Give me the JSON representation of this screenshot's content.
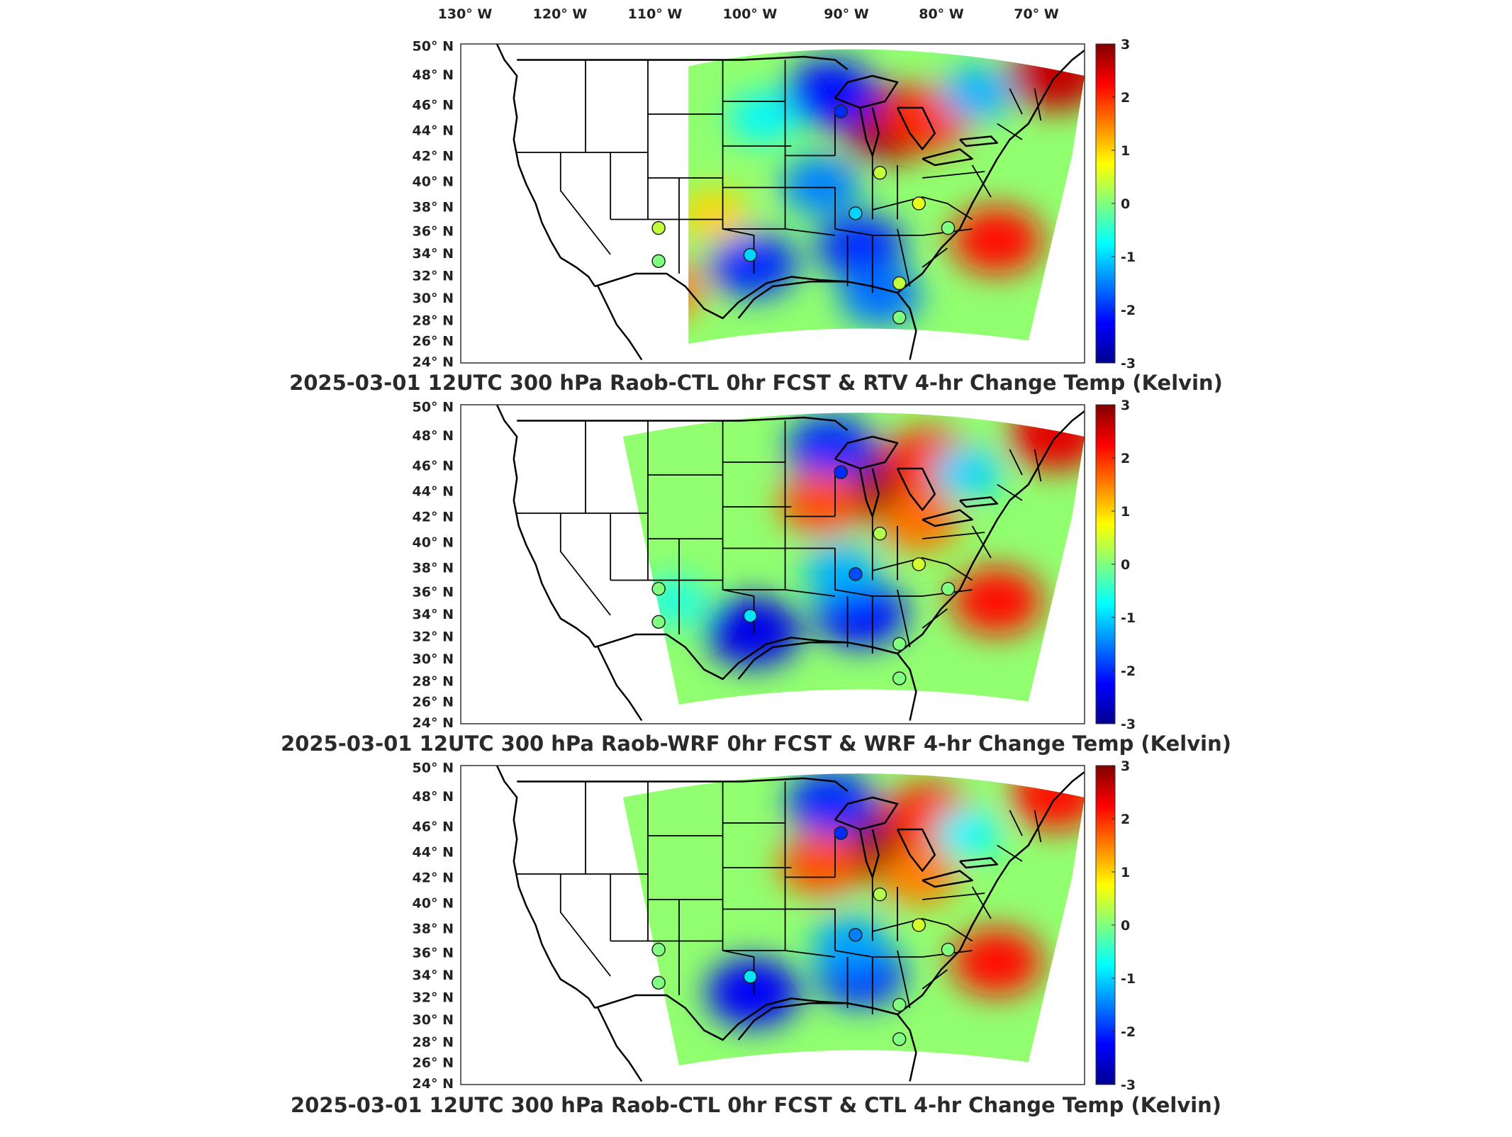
{
  "colors": {
    "colormap": [
      "#00008f",
      "#0000ff",
      "#0080ff",
      "#00ffff",
      "#80ff80",
      "#ffff00",
      "#ff8000",
      "#ff0000",
      "#800000"
    ],
    "land_line": "#000000",
    "axes_frame": "#333333"
  },
  "chart_data": [
    {
      "type": "heatmap",
      "title": "2025-03-01 12UTC 300 hPa Raob-CTL 0hr FCST & RTV 4-hr Change Temp (Kelvin)",
      "x_tick_labels": [
        "130° W",
        "120° W",
        "110° W",
        "100° W",
        "90° W",
        "80° W",
        "70° W"
      ],
      "y_tick_labels": [
        "50° N",
        "48° N",
        "46° N",
        "44° N",
        "42° N",
        "40° N",
        "38° N",
        "36° N",
        "34° N",
        "32° N",
        "30° N",
        "28° N",
        "26° N",
        "24° N"
      ],
      "colorbar_ticks": [
        3,
        2,
        1,
        0,
        -1,
        -2,
        -3
      ],
      "clim": [
        -3,
        3
      ],
      "lon_range": [
        -127,
        -63
      ],
      "lat_range": [
        24,
        50
      ],
      "field": [
        {
          "lon": -83,
          "lat": 43.5,
          "value": 2.8
        },
        {
          "lon": -79,
          "lat": 44.0,
          "value": 2.0
        },
        {
          "lon": -66,
          "lat": 47.5,
          "value": 2.6
        },
        {
          "lon": -72,
          "lat": 34.0,
          "value": 2.2
        },
        {
          "lon": -89,
          "lat": 46.0,
          "value": -2.2
        },
        {
          "lon": -86,
          "lat": 33.5,
          "value": -2.0
        },
        {
          "lon": -97,
          "lat": 32.0,
          "value": -2.0
        },
        {
          "lon": -90,
          "lat": 38.5,
          "value": -1.5
        },
        {
          "lon": -84,
          "lat": 29.5,
          "value": -1.6
        },
        {
          "lon": -106,
          "lat": 30.0,
          "value": 1.5
        },
        {
          "lon": -101,
          "lat": 36.0,
          "value": 1.0
        },
        {
          "lon": -74,
          "lat": 46.0,
          "value": -1.2
        },
        {
          "lon": -96,
          "lat": 44.0,
          "value": -0.8
        }
      ],
      "raob_sites": [
        {
          "lon": -106.7,
          "lat": 35.0,
          "value": 0.4
        },
        {
          "lon": -106.7,
          "lat": 32.3,
          "value": 0.0
        },
        {
          "lon": -97.3,
          "lat": 32.8,
          "value": -1.0
        },
        {
          "lon": -88.0,
          "lat": 44.5,
          "value": -2.0
        },
        {
          "lon": -86.5,
          "lat": 36.2,
          "value": -1.0
        },
        {
          "lon": -84.0,
          "lat": 39.5,
          "value": 0.4
        },
        {
          "lon": -80.0,
          "lat": 37.0,
          "value": 0.6
        },
        {
          "lon": -77.0,
          "lat": 35.0,
          "value": 0.0
        },
        {
          "lon": -82.0,
          "lat": 30.5,
          "value": 0.4
        },
        {
          "lon": -82.0,
          "lat": 27.7,
          "value": 0.0
        }
      ]
    },
    {
      "type": "heatmap",
      "title": "2025-03-01 12UTC 300 hPa Raob-WRF 0hr FCST & WRF 4-hr Change Temp (Kelvin)",
      "x_tick_labels": [
        "130° W",
        "120° W",
        "110° W",
        "100° W",
        "90° W",
        "80° W",
        "70° W"
      ],
      "y_tick_labels": [
        "50° N",
        "48° N",
        "46° N",
        "44° N",
        "42° N",
        "40° N",
        "38° N",
        "36° N",
        "34° N",
        "32° N",
        "30° N",
        "28° N",
        "26° N",
        "24° N"
      ],
      "colorbar_ticks": [
        3,
        2,
        1,
        0,
        -1,
        -2,
        -3
      ],
      "clim": [
        -3,
        3
      ],
      "lon_range": [
        -127,
        -63
      ],
      "lat_range": [
        24,
        50
      ],
      "field": [
        {
          "lon": -83,
          "lat": 43.5,
          "value": 3.0
        },
        {
          "lon": -79,
          "lat": 45.5,
          "value": 2.0
        },
        {
          "lon": -66,
          "lat": 47.5,
          "value": 2.4
        },
        {
          "lon": -72,
          "lat": 34.0,
          "value": 2.2
        },
        {
          "lon": -89,
          "lat": 46.5,
          "value": -2.0
        },
        {
          "lon": -86,
          "lat": 33.0,
          "value": -2.2
        },
        {
          "lon": -97,
          "lat": 31.5,
          "value": -2.4
        },
        {
          "lon": -90,
          "lat": 42.0,
          "value": 1.8
        },
        {
          "lon": -80,
          "lat": 40.5,
          "value": 1.6
        },
        {
          "lon": -88,
          "lat": 36.5,
          "value": -1.2
        },
        {
          "lon": -105,
          "lat": 34.0,
          "value": -0.6
        },
        {
          "lon": -75,
          "lat": 44.5,
          "value": -1.0
        }
      ],
      "raob_sites": [
        {
          "lon": -106.7,
          "lat": 35.0,
          "value": 0.0
        },
        {
          "lon": -106.7,
          "lat": 32.3,
          "value": 0.0
        },
        {
          "lon": -97.3,
          "lat": 32.8,
          "value": -0.9
        },
        {
          "lon": -88.0,
          "lat": 44.5,
          "value": -2.0
        },
        {
          "lon": -86.5,
          "lat": 36.2,
          "value": -1.8
        },
        {
          "lon": -84.0,
          "lat": 39.5,
          "value": 0.3
        },
        {
          "lon": -80.0,
          "lat": 37.0,
          "value": 0.5
        },
        {
          "lon": -77.0,
          "lat": 35.0,
          "value": 0.0
        },
        {
          "lon": -82.0,
          "lat": 30.5,
          "value": 0.0
        },
        {
          "lon": -82.0,
          "lat": 27.7,
          "value": 0.0
        }
      ]
    },
    {
      "type": "heatmap",
      "title": "2025-03-01 12UTC 300 hPa Raob-CTL 0hr FCST & CTL 4-hr Change Temp (Kelvin)",
      "x_tick_labels": [
        "130° W",
        "120° W",
        "110° W",
        "100° W",
        "90° W",
        "80° W",
        "70° W"
      ],
      "y_tick_labels": [
        "50° N",
        "48° N",
        "46° N",
        "44° N",
        "42° N",
        "40° N",
        "38° N",
        "36° N",
        "34° N",
        "32° N",
        "30° N",
        "28° N",
        "26° N",
        "24° N"
      ],
      "colorbar_ticks": [
        3,
        2,
        1,
        0,
        -1,
        -2,
        -3
      ],
      "clim": [
        -3,
        3
      ],
      "lon_range": [
        -127,
        -63
      ],
      "lat_range": [
        24,
        50
      ],
      "field": [
        {
          "lon": -83,
          "lat": 43.5,
          "value": 3.0
        },
        {
          "lon": -79,
          "lat": 46.0,
          "value": 2.0
        },
        {
          "lon": -66,
          "lat": 47.5,
          "value": 2.2
        },
        {
          "lon": -72,
          "lat": 34.0,
          "value": 2.2
        },
        {
          "lon": -89,
          "lat": 47.0,
          "value": -2.0
        },
        {
          "lon": -86,
          "lat": 33.0,
          "value": -2.0
        },
        {
          "lon": -97,
          "lat": 31.5,
          "value": -2.3
        },
        {
          "lon": -90,
          "lat": 42.0,
          "value": 1.8
        },
        {
          "lon": -80,
          "lat": 41.0,
          "value": 1.5
        },
        {
          "lon": -87,
          "lat": 35.5,
          "value": -1.3
        },
        {
          "lon": -75,
          "lat": 44.5,
          "value": -0.8
        }
      ],
      "raob_sites": [
        {
          "lon": -106.7,
          "lat": 35.0,
          "value": 0.0
        },
        {
          "lon": -106.7,
          "lat": 32.3,
          "value": 0.0
        },
        {
          "lon": -97.3,
          "lat": 32.8,
          "value": -0.9
        },
        {
          "lon": -88.0,
          "lat": 44.5,
          "value": -2.0
        },
        {
          "lon": -86.5,
          "lat": 36.2,
          "value": -1.5
        },
        {
          "lon": -84.0,
          "lat": 39.5,
          "value": 0.3
        },
        {
          "lon": -80.0,
          "lat": 37.0,
          "value": 0.5
        },
        {
          "lon": -77.0,
          "lat": 35.0,
          "value": 0.0
        },
        {
          "lon": -82.0,
          "lat": 30.5,
          "value": 0.0
        },
        {
          "lon": -82.0,
          "lat": 27.7,
          "value": 0.0
        }
      ]
    }
  ]
}
